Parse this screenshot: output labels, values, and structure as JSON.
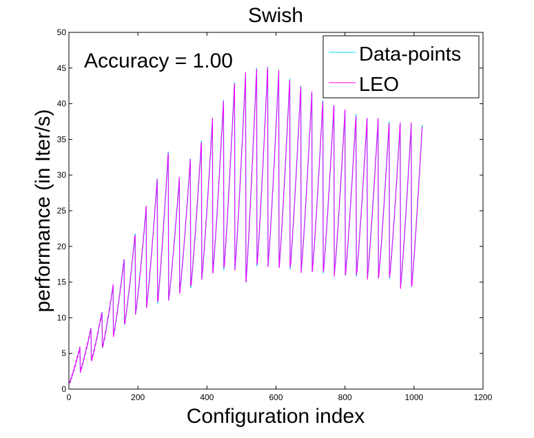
{
  "chart_data": {
    "type": "line",
    "title": "Swish",
    "xlabel": "Configuration index",
    "ylabel": "performance (in Iter/s)",
    "xlim": [
      0,
      1200
    ],
    "ylim": [
      0,
      50
    ],
    "xticks": [
      0,
      200,
      400,
      600,
      800,
      1000,
      1200
    ],
    "yticks": [
      0,
      5,
      10,
      15,
      20,
      25,
      30,
      35,
      40,
      45,
      50
    ],
    "annotation": "Accuracy = 1.00",
    "legend_position": "top-right",
    "grid": false,
    "segment_length": 32,
    "num_points": 1024,
    "segments": [
      {
        "start": 0.8,
        "end": 5.8
      },
      {
        "start": 2.5,
        "end": 8.5
      },
      {
        "start": 4.0,
        "end": 10.8
      },
      {
        "start": 5.8,
        "end": 14.5
      },
      {
        "start": 7.5,
        "end": 18.2
      },
      {
        "start": 9.0,
        "end": 21.8
      },
      {
        "start": 10.5,
        "end": 25.5
      },
      {
        "start": 11.5,
        "end": 29.5
      },
      {
        "start": 12.0,
        "end": 33.3
      },
      {
        "start": 12.5,
        "end": 29.5
      },
      {
        "start": 13.5,
        "end": 32.3
      },
      {
        "start": 14.2,
        "end": 34.8
      },
      {
        "start": 15.5,
        "end": 37.8
      },
      {
        "start": 16.3,
        "end": 40.5
      },
      {
        "start": 16.7,
        "end": 43.0
      },
      {
        "start": 16.8,
        "end": 44.2
      },
      {
        "start": 15.0,
        "end": 45.0
      },
      {
        "start": 17.2,
        "end": 45.2
      },
      {
        "start": 17.3,
        "end": 44.5
      },
      {
        "start": 17.0,
        "end": 43.5
      },
      {
        "start": 16.8,
        "end": 42.5
      },
      {
        "start": 16.5,
        "end": 41.5
      },
      {
        "start": 16.4,
        "end": 40.5
      },
      {
        "start": 16.2,
        "end": 39.8
      },
      {
        "start": 16.0,
        "end": 39.0
      },
      {
        "start": 15.9,
        "end": 38.5
      },
      {
        "start": 15.8,
        "end": 38.0
      },
      {
        "start": 15.6,
        "end": 37.8
      },
      {
        "start": 15.5,
        "end": 37.5
      },
      {
        "start": 15.5,
        "end": 37.3
      },
      {
        "start": 14.3,
        "end": 37.2
      },
      {
        "start": 14.3,
        "end": 37.0
      }
    ],
    "series": [
      {
        "name": "Data-points",
        "color": "#00e5ee"
      },
      {
        "name": "LEO",
        "color": "#ff00ff"
      }
    ]
  }
}
